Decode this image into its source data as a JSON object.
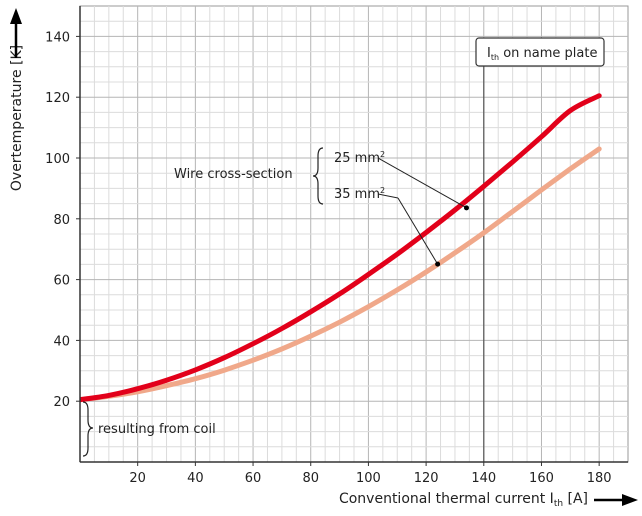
{
  "chart_data": {
    "type": "line",
    "xlabel_main": "Conventional thermal current I",
    "xlabel_sub": "th",
    "xlabel_unit": " [A]",
    "ylabel": "Overtemperature [K]",
    "xlim": [
      0,
      190
    ],
    "ylim": [
      0,
      150
    ],
    "x_ticks": [
      20,
      40,
      60,
      80,
      100,
      120,
      140,
      160,
      180
    ],
    "y_ticks": [
      20,
      40,
      60,
      80,
      100,
      120,
      140
    ],
    "grid": true,
    "x": [
      0,
      10,
      20,
      30,
      40,
      50,
      60,
      70,
      80,
      90,
      100,
      110,
      120,
      130,
      140,
      150,
      160,
      170,
      180
    ],
    "series": [
      {
        "name": "25 mm²",
        "color": "#e2001a",
        "values": [
          20.5,
          21.9,
          24.1,
          26.9,
          30.3,
          34.3,
          38.9,
          43.9,
          49.4,
          55.3,
          61.7,
          68.4,
          75.5,
          82.9,
          90.7,
          98.7,
          107.0,
          115.6,
          120.5
        ]
      },
      {
        "name": "35 mm²",
        "color": "#f0a88a",
        "values": [
          20.5,
          21.6,
          23.1,
          25.1,
          27.4,
          30.2,
          33.5,
          37.2,
          41.4,
          46.0,
          51.1,
          56.6,
          62.5,
          68.8,
          75.4,
          82.4,
          89.5,
          96.4,
          103.0
        ]
      }
    ],
    "threshold": {
      "x": 140,
      "label_main": "I",
      "label_sub": "th",
      "label_rest": " on name plate"
    },
    "annotations": {
      "wire_label": "Wire cross-section",
      "wire_25": "25 mm",
      "wire_35": "35 mm",
      "sup": "2",
      "coil_label": "resulting from coil",
      "point_25": {
        "x": 134,
        "y": 83.6
      },
      "point_35": {
        "x": 124,
        "y": 65.1
      }
    }
  }
}
